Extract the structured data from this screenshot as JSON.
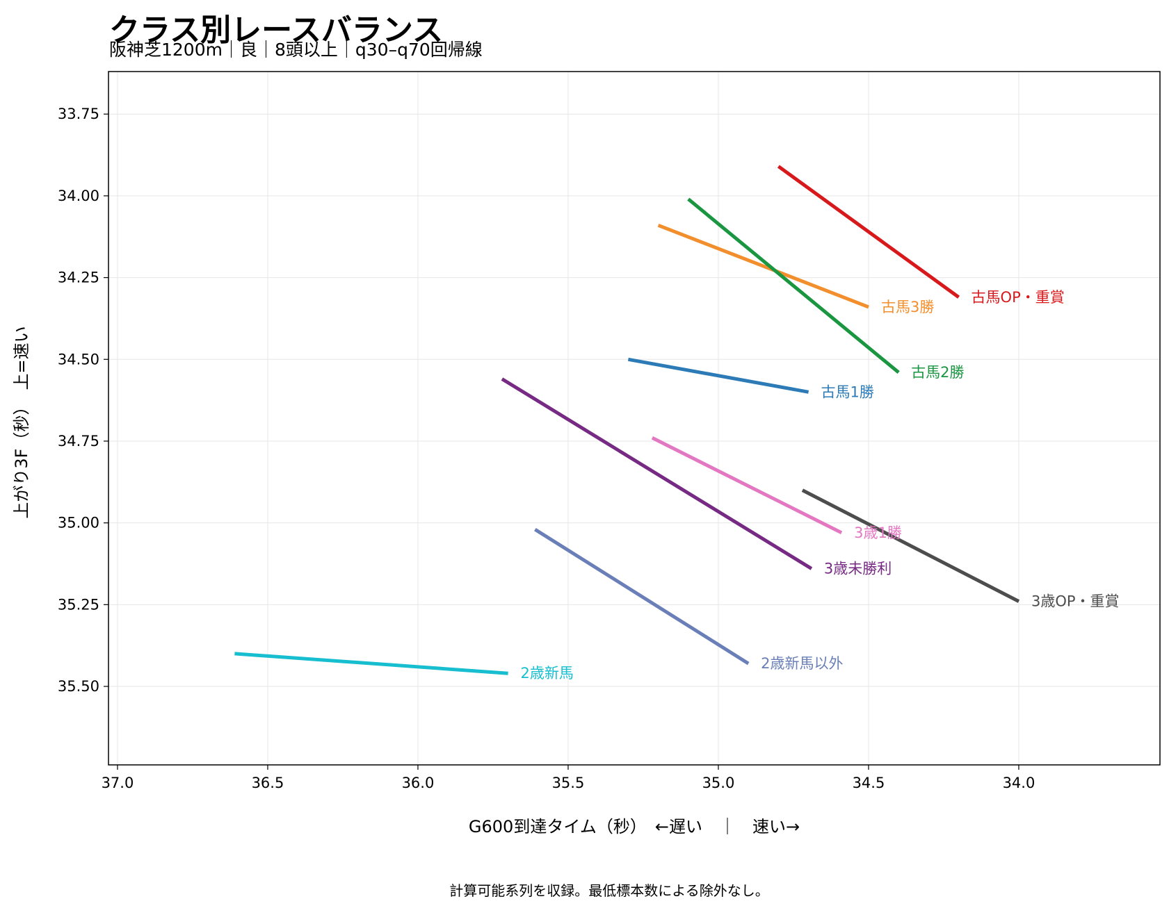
{
  "chart_data": {
    "type": "line",
    "title": "クラス別レースバランス",
    "subtitle": "阪神芝1200m｜良｜8頭以上｜q30–q70回帰線",
    "xlabel": "G600到達タイム（秒）　←遅い　｜　速い→",
    "ylabel": "上がり3F（秒）　上=速い",
    "footnote": "計算可能系列を収録。最低標本数による除外なし。",
    "xlim": [
      37.03,
      33.53
    ],
    "ylim": [
      35.74,
      33.62
    ],
    "x_reversed": true,
    "y_reversed": true,
    "x_ticks": [
      "37.0",
      "36.5",
      "36.0",
      "35.5",
      "35.0",
      "34.5",
      "34.0"
    ],
    "x_tick_values": [
      37.0,
      36.5,
      36.0,
      35.5,
      35.0,
      34.5,
      34.0
    ],
    "y_ticks": [
      "33.75",
      "34.00",
      "34.25",
      "34.50",
      "34.75",
      "35.00",
      "35.25",
      "35.50"
    ],
    "y_tick_values": [
      33.75,
      34.0,
      34.25,
      34.5,
      34.75,
      35.0,
      35.25,
      35.5
    ],
    "grid": true,
    "legend": "none",
    "series": [
      {
        "name": "古馬OP・重賞",
        "color": "#d7191c",
        "x": [
          34.8,
          34.2
        ],
        "y": [
          33.91,
          34.31
        ]
      },
      {
        "name": "古馬3勝",
        "color": "#f28e2b",
        "x": [
          35.2,
          34.5
        ],
        "y": [
          34.09,
          34.34
        ]
      },
      {
        "name": "古馬2勝",
        "color": "#1a9641",
        "x": [
          35.1,
          34.4
        ],
        "y": [
          34.01,
          34.54
        ]
      },
      {
        "name": "古馬1勝",
        "color": "#2c7bb6",
        "x": [
          35.3,
          34.7
        ],
        "y": [
          34.5,
          34.6
        ]
      },
      {
        "name": "3歳1勝",
        "color": "#e377c2",
        "x": [
          35.22,
          34.59
        ],
        "y": [
          34.74,
          35.03
        ]
      },
      {
        "name": "3歳未勝利",
        "color": "#762a83",
        "x": [
          35.72,
          34.69
        ],
        "y": [
          34.56,
          35.14
        ]
      },
      {
        "name": "3歳OP・重賞",
        "color": "#4d4d4d",
        "x": [
          34.72,
          34.0
        ],
        "y": [
          34.9,
          35.24
        ]
      },
      {
        "name": "2歳新馬以外",
        "color": "#6a7fb8",
        "x": [
          35.61,
          34.9
        ],
        "y": [
          35.02,
          35.43
        ]
      },
      {
        "name": "2歳新馬",
        "color": "#17becf",
        "x": [
          36.61,
          35.7
        ],
        "y": [
          35.4,
          35.46
        ]
      }
    ]
  }
}
